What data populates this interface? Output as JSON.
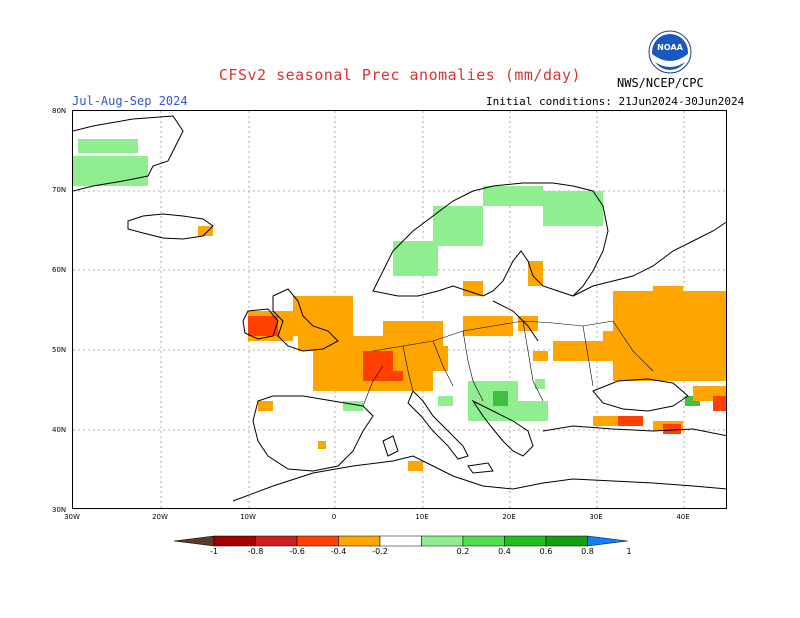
{
  "header": {
    "title": "CFSv2 seasonal Prec anomalies (mm/day)",
    "season": "Jul-Aug-Sep 2024",
    "initial_conditions": "Initial conditions: 21Jun2024-30Jun2024",
    "agency": "NWS/NCEP/CPC",
    "logo_text": "NOAA"
  },
  "map": {
    "lat_ticks": [
      "80N",
      "70N",
      "60N",
      "50N",
      "40N",
      "30N"
    ],
    "lon_ticks": [
      "30W",
      "20W",
      "10W",
      "0",
      "10E",
      "20E",
      "30E",
      "40E"
    ],
    "land_color": "#ffffff",
    "coast_color": "#000000",
    "grid_color": "#999999"
  },
  "legend": {
    "labels": [
      "-1",
      "-0.8",
      "-0.6",
      "-0.4",
      "-0.2",
      "0.2",
      "0.4",
      "0.6",
      "0.8",
      "1"
    ],
    "colors": [
      "#5c3a2e",
      "#a00000",
      "#cc2020",
      "#ff4000",
      "#ffa500",
      "#ffffff",
      "#90ee90",
      "#50e050",
      "#20c020",
      "#10a010",
      "#1080ff"
    ]
  },
  "anomalies": {
    "dry_color": "#ffa500",
    "very_dry_color": "#ff4000",
    "wet_color": "#90ee90",
    "wet2_color": "#40c040"
  }
}
